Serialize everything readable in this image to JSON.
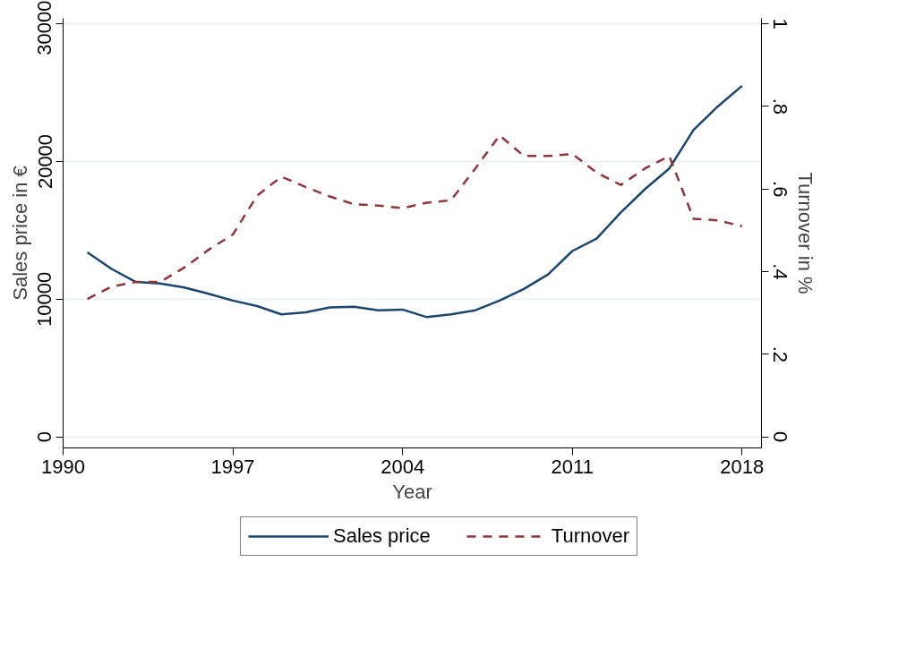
{
  "chart_data": {
    "type": "line",
    "xlabel": "Year",
    "ylabel": "Sales price in €",
    "y2label": "Turnover in %",
    "x": [
      1991,
      1992,
      1993,
      1994,
      1995,
      1996,
      1997,
      1998,
      1999,
      2000,
      2001,
      2002,
      2003,
      2004,
      2005,
      2006,
      2007,
      2008,
      2009,
      2010,
      2011,
      2012,
      2013,
      2014,
      2015,
      2016,
      2017,
      2018
    ],
    "series": [
      {
        "name": "Sales price",
        "color": "#1a476f",
        "line_style": "solid",
        "values": [
          13400,
          12200,
          11250,
          11150,
          10850,
          10400,
          9900,
          9500,
          8900,
          9050,
          9400,
          9450,
          9200,
          9250,
          8700,
          8900,
          9200,
          9900,
          10750,
          11800,
          13500,
          14400,
          16300,
          18000,
          19500,
          22300,
          24000,
          25500
        ]
      },
      {
        "name": "Turnover",
        "color": "#90353b",
        "line_style": "dashed",
        "axis": "y2",
        "values": [
          0.334,
          0.364,
          0.375,
          0.375,
          0.41,
          0.453,
          0.49,
          0.584,
          0.63,
          0.605,
          0.582,
          0.563,
          0.56,
          0.554,
          0.567,
          0.573,
          0.65,
          0.73,
          0.68,
          0.68,
          0.685,
          0.64,
          0.61,
          0.65,
          0.68,
          0.528,
          0.524,
          0.51
        ]
      }
    ],
    "xlim": [
      1990,
      2018.8
    ],
    "xticks": [
      1990,
      1997,
      2004,
      2011,
      2018
    ],
    "ylim": [
      -800,
      30400
    ],
    "yticks": [
      0,
      10000,
      20000,
      30000
    ],
    "y2lim": [
      -0.0267,
      1.0133
    ],
    "y2ticks": [
      {
        "value": 0,
        "label": "0"
      },
      {
        "value": 0.2,
        "label": ".2"
      },
      {
        "value": 0.4,
        "label": ".4"
      },
      {
        "value": 0.6,
        "label": ".6"
      },
      {
        "value": 0.8,
        "label": ".8"
      },
      {
        "value": 1,
        "label": "1"
      }
    ],
    "grid": "y",
    "legend": "bottom",
    "marker": "none"
  }
}
